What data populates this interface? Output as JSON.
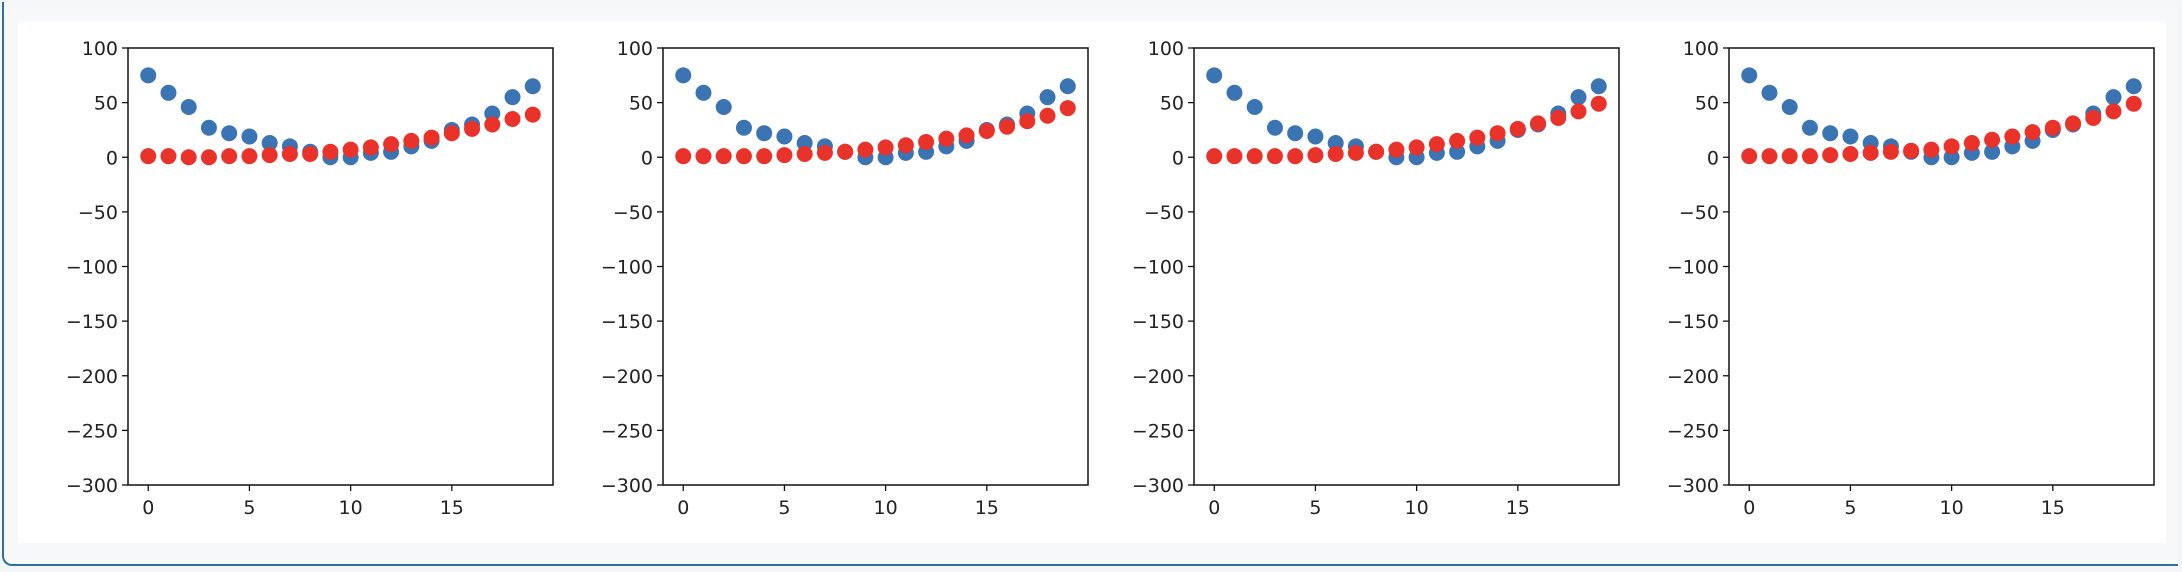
{
  "output_cell": {
    "colors": {
      "frame": "#2f6f9f",
      "background": "#f7f8fa"
    }
  },
  "chart_data": [
    {
      "type": "scatter",
      "xlim": [
        -1,
        20
      ],
      "ylim": [
        -300,
        100
      ],
      "xticks": [
        "0",
        "5",
        "10",
        "15"
      ],
      "yticks": [
        "100",
        "50",
        "0",
        "−50",
        "−100",
        "−150",
        "−200",
        "−250",
        "−300"
      ],
      "grid": false,
      "series": [
        {
          "color": "#3a74b2",
          "x": [
            0,
            1,
            2,
            3,
            4,
            5,
            6,
            7,
            8,
            9,
            10,
            11,
            12,
            13,
            14,
            15,
            16,
            17,
            18,
            19
          ],
          "y": [
            75,
            59,
            46,
            27,
            22,
            19,
            13,
            10,
            5,
            0,
            0,
            4,
            5,
            10,
            15,
            25,
            30,
            40,
            55,
            65
          ]
        },
        {
          "color": "#e8322a",
          "x": [
            0,
            1,
            2,
            3,
            4,
            5,
            6,
            7,
            8,
            9,
            10,
            11,
            12,
            13,
            14,
            15,
            16,
            17,
            18,
            19
          ],
          "y": [
            1,
            1,
            0,
            0,
            1,
            1,
            2,
            3,
            3,
            5,
            7,
            9,
            12,
            15,
            18,
            22,
            26,
            30,
            35,
            39
          ]
        }
      ]
    },
    {
      "type": "scatter",
      "xlim": [
        -1,
        20
      ],
      "ylim": [
        -300,
        100
      ],
      "xticks": [
        "0",
        "5",
        "10",
        "15"
      ],
      "yticks": [
        "100",
        "50",
        "0",
        "−50",
        "−100",
        "−150",
        "−200",
        "−250",
        "−300"
      ],
      "grid": false,
      "series": [
        {
          "color": "#3a74b2",
          "x": [
            0,
            1,
            2,
            3,
            4,
            5,
            6,
            7,
            8,
            9,
            10,
            11,
            12,
            13,
            14,
            15,
            16,
            17,
            18,
            19
          ],
          "y": [
            75,
            59,
            46,
            27,
            22,
            19,
            13,
            10,
            5,
            0,
            0,
            4,
            5,
            10,
            15,
            25,
            30,
            40,
            55,
            65
          ]
        },
        {
          "color": "#e8322a",
          "x": [
            0,
            1,
            2,
            3,
            4,
            5,
            6,
            7,
            8,
            9,
            10,
            11,
            12,
            13,
            14,
            15,
            16,
            17,
            18,
            19
          ],
          "y": [
            1,
            1,
            1,
            1,
            1,
            2,
            3,
            4,
            5,
            7,
            9,
            11,
            14,
            17,
            20,
            24,
            28,
            33,
            38,
            45
          ]
        }
      ]
    },
    {
      "type": "scatter",
      "xlim": [
        -1,
        20
      ],
      "ylim": [
        -300,
        100
      ],
      "xticks": [
        "0",
        "5",
        "10",
        "15"
      ],
      "yticks": [
        "100",
        "50",
        "0",
        "−50",
        "−100",
        "−150",
        "−200",
        "−250",
        "−300"
      ],
      "grid": false,
      "series": [
        {
          "color": "#3a74b2",
          "x": [
            0,
            1,
            2,
            3,
            4,
            5,
            6,
            7,
            8,
            9,
            10,
            11,
            12,
            13,
            14,
            15,
            16,
            17,
            18,
            19
          ],
          "y": [
            75,
            59,
            46,
            27,
            22,
            19,
            13,
            10,
            5,
            0,
            0,
            4,
            5,
            10,
            15,
            25,
            30,
            40,
            55,
            65
          ]
        },
        {
          "color": "#e8322a",
          "x": [
            0,
            1,
            2,
            3,
            4,
            5,
            6,
            7,
            8,
            9,
            10,
            11,
            12,
            13,
            14,
            15,
            16,
            17,
            18,
            19
          ],
          "y": [
            1,
            1,
            1,
            1,
            1,
            2,
            3,
            4,
            5,
            7,
            9,
            12,
            15,
            18,
            22,
            26,
            31,
            36,
            42,
            49
          ]
        }
      ]
    },
    {
      "type": "scatter",
      "xlim": [
        -1,
        20
      ],
      "ylim": [
        -300,
        100
      ],
      "xticks": [
        "0",
        "5",
        "10",
        "15"
      ],
      "yticks": [
        "100",
        "50",
        "0",
        "−50",
        "−100",
        "−150",
        "−200",
        "−250",
        "−300"
      ],
      "grid": false,
      "series": [
        {
          "color": "#3a74b2",
          "x": [
            0,
            1,
            2,
            3,
            4,
            5,
            6,
            7,
            8,
            9,
            10,
            11,
            12,
            13,
            14,
            15,
            16,
            17,
            18,
            19
          ],
          "y": [
            75,
            59,
            46,
            27,
            22,
            19,
            13,
            10,
            5,
            0,
            0,
            4,
            5,
            10,
            15,
            25,
            30,
            40,
            55,
            65
          ]
        },
        {
          "color": "#e8322a",
          "x": [
            0,
            1,
            2,
            3,
            4,
            5,
            6,
            7,
            8,
            9,
            10,
            11,
            12,
            13,
            14,
            15,
            16,
            17,
            18,
            19
          ],
          "y": [
            1,
            1,
            1,
            1,
            2,
            3,
            4,
            5,
            6,
            7,
            10,
            13,
            16,
            19,
            23,
            27,
            31,
            36,
            42,
            49
          ]
        }
      ]
    }
  ]
}
